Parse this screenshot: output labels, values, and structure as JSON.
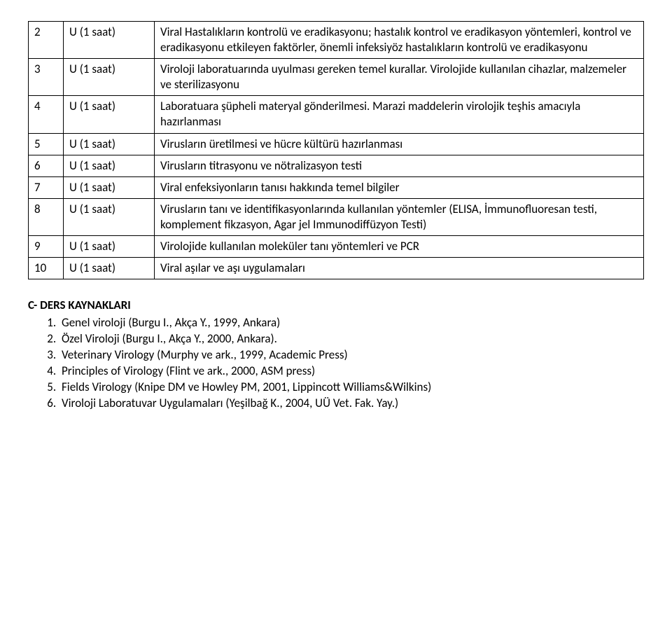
{
  "table": {
    "rows": [
      {
        "num": "2",
        "duration": "U (1 saat)",
        "desc": "Viral Hastalıkların kontrolü ve eradikasyonu; hastalık kontrol ve eradikasyon yöntemleri, kontrol ve eradikasyonu etkileyen faktörler, önemli infeksiyöz hastalıkların kontrolü ve eradikasyonu"
      },
      {
        "num": "3",
        "duration": "U (1 saat)",
        "desc": "Viroloji laboratuarında uyulması gereken temel kurallar. Virolojide kullanılan cihazlar, malzemeler ve sterilizasyonu"
      },
      {
        "num": "4",
        "duration": "U (1 saat)",
        "desc": "Laboratuara şüpheli materyal gönderilmesi. Marazi maddelerin virolojik teşhis amacıyla hazırlanması"
      },
      {
        "num": "5",
        "duration": "U (1 saat)",
        "desc": "Virusların üretilmesi ve hücre kültürü hazırlanması"
      },
      {
        "num": "6",
        "duration": "U (1 saat)",
        "desc": "Virusların titrasyonu ve nötralizasyon testi"
      },
      {
        "num": "7",
        "duration": "U (1 saat)",
        "desc": "Viral enfeksiyonların tanısı hakkında temel bilgiler"
      },
      {
        "num": "8",
        "duration": "U (1 saat)",
        "desc": "Virusların tanı ve identifikasyonlarında kullanılan yöntemler (ELISA, İmmunofluoresan testi, komplement fikzasyon, Agar jel Immunodiffüzyon Testi)"
      },
      {
        "num": "9",
        "duration": "U (1 saat)",
        "desc": "Virolojide kullanılan moleküler tanı yöntemleri ve PCR"
      },
      {
        "num": "10",
        "duration": "U (1 saat)",
        "desc": "Viral aşılar ve aşı uygulamaları"
      }
    ]
  },
  "sources": {
    "heading": "C- DERS KAYNAKLARI",
    "items": [
      "Genel viroloji (Burgu I., Akça Y., 1999, Ankara)",
      "Özel Viroloji (Burgu I., Akça Y., 2000, Ankara).",
      "Veterinary Virology (Murphy ve ark., 1999, Academic Press)",
      "Principles of Virology (Flint ve ark., 2000, ASM press)",
      "Fields Virology (Knipe DM ve Howley PM, 2001, Lippincott Williams&Wilkins)",
      "Viroloji Laboratuvar Uygulamaları (Yeşilbağ K., 2004, UÜ Vet. Fak. Yay.)"
    ]
  }
}
